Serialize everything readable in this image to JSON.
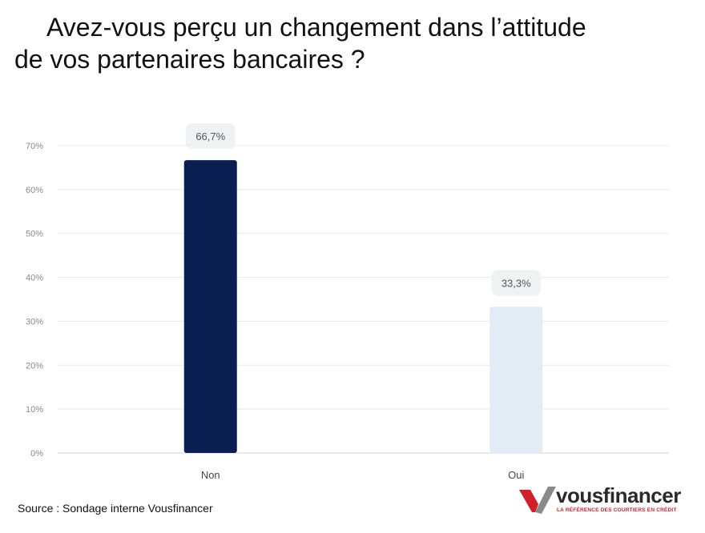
{
  "title": {
    "line1": "Avez-vous perçu un changement dans l’attitude",
    "line2": "de vos partenaires bancaires ?"
  },
  "source": "Source : Sondage interne Vousfinancer",
  "logo": {
    "name": "vousfinancer",
    "tagline": "LA RÉFÉRENCE DES COURTIERS EN CRÉDIT"
  },
  "chart_data": {
    "type": "bar",
    "categories": [
      "Non",
      "Oui"
    ],
    "values": [
      66.7,
      33.3
    ],
    "data_labels": [
      "66,7%",
      "33,3%"
    ],
    "colors": [
      "#0a1f52",
      "#e3ebf5"
    ],
    "ylim": [
      0,
      70
    ],
    "yticks": [
      "0%",
      "10%",
      "20%",
      "30%",
      "40%",
      "50%",
      "60%",
      "70%"
    ],
    "grid": true,
    "xlabel": "",
    "ylabel": ""
  }
}
